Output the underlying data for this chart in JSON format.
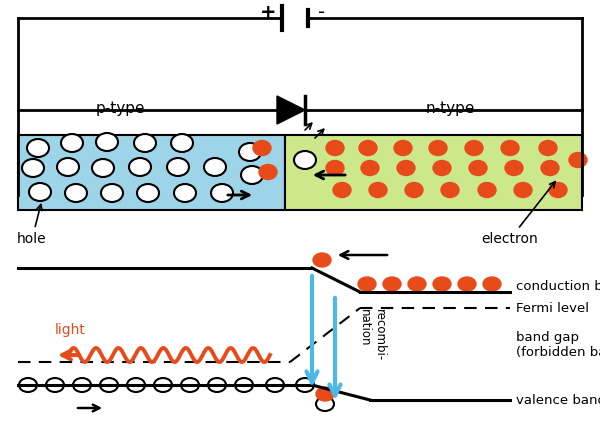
{
  "bg_color": "#ffffff",
  "p_type_color": "#9dd4e8",
  "n_type_color": "#cce88a",
  "electron_color": "#e84b1a",
  "hole_fill": "#ffffff",
  "hole_edge": "#000000",
  "arrow_color": "#000000",
  "blue_arrow_color": "#4db8e8",
  "light_color": "#e84b1a",
  "wire_color": "#000000",
  "p_label": "p-type",
  "n_label": "n-type",
  "hole_label": "hole",
  "electron_label": "electron",
  "light_label": "light",
  "conduction_label": "conduction band",
  "fermi_label": "Fermi level",
  "bandgap_label": "band gap\n(forbidden band)",
  "valence_label": "valence band",
  "recombination_label": "recombi-\nnation",
  "plus_label": "+",
  "minus_label": "-",
  "fig_w": 6.0,
  "fig_h": 4.22,
  "dpi": 100
}
